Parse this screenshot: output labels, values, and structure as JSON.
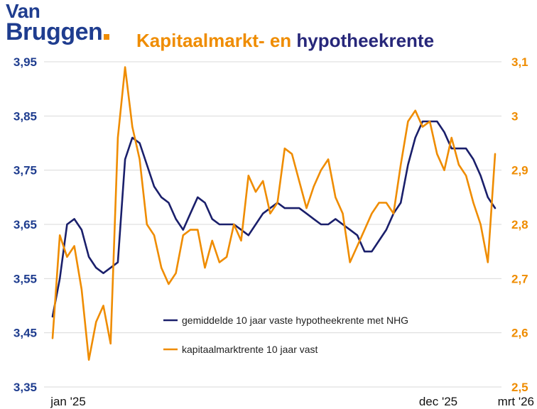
{
  "brand": {
    "line1": "Van",
    "line2": "Bruggen"
  },
  "title": {
    "part1": "Kapitaalmarkt- en",
    "part2": "hypotheekrente"
  },
  "colors": {
    "left_series": "#1a1f6b",
    "right_series": "#ef8c00",
    "brand": "#1f3d8f",
    "grid": "#d9d9d9",
    "left_axis_text": "#1f3d8f",
    "right_axis_text": "#ef8c00"
  },
  "chart_data": {
    "type": "line",
    "title": "Kapitaalmarkt- en hypotheekrente",
    "xlabel": "",
    "ylabel": "",
    "x_tick_labels": [
      "jan '25",
      "dec '25",
      "mrt '26"
    ],
    "y_left": {
      "ylim": [
        3.35,
        3.95
      ],
      "ticks": [
        "3,35",
        "3,45",
        "3,55",
        "3,65",
        "3,75",
        "3,85",
        "3,95"
      ]
    },
    "y_right": {
      "ylim": [
        2.5,
        3.1
      ],
      "ticks": [
        "2,5",
        "2,6",
        "2,7",
        "2,8",
        "2,9",
        "3",
        "3,1"
      ]
    },
    "grid": true,
    "legend_position": "center-bottom",
    "series": [
      {
        "name": "gemiddelde 10 jaar vaste hypotheekrente met NHG",
        "axis": "left",
        "values": [
          3.48,
          3.55,
          3.65,
          3.66,
          3.64,
          3.59,
          3.57,
          3.56,
          3.57,
          3.58,
          3.77,
          3.81,
          3.8,
          3.76,
          3.72,
          3.7,
          3.69,
          3.66,
          3.64,
          3.67,
          3.7,
          3.69,
          3.66,
          3.65,
          3.65,
          3.65,
          3.64,
          3.63,
          3.65,
          3.67,
          3.68,
          3.69,
          3.68,
          3.68,
          3.68,
          3.67,
          3.66,
          3.65,
          3.65,
          3.66,
          3.65,
          3.64,
          3.63,
          3.6,
          3.6,
          3.62,
          3.64,
          3.67,
          3.69,
          3.76,
          3.81,
          3.84,
          3.84,
          3.84,
          3.82,
          3.79,
          3.79,
          3.79,
          3.77,
          3.74,
          3.7,
          3.68
        ]
      },
      {
        "name": "kapitaalmarktrente 10 jaar vast",
        "axis": "right",
        "values": [
          2.59,
          2.78,
          2.74,
          2.76,
          2.68,
          2.55,
          2.62,
          2.65,
          2.58,
          2.96,
          3.09,
          2.98,
          2.92,
          2.8,
          2.78,
          2.72,
          2.69,
          2.71,
          2.78,
          2.79,
          2.79,
          2.72,
          2.77,
          2.73,
          2.74,
          2.8,
          2.77,
          2.89,
          2.86,
          2.88,
          2.82,
          2.84,
          2.94,
          2.93,
          2.88,
          2.83,
          2.87,
          2.9,
          2.92,
          2.85,
          2.82,
          2.73,
          2.76,
          2.79,
          2.82,
          2.84,
          2.84,
          2.82,
          2.91,
          2.99,
          3.01,
          2.98,
          2.99,
          2.93,
          2.9,
          2.96,
          2.91,
          2.89,
          2.84,
          2.8,
          2.73,
          2.93
        ]
      }
    ]
  }
}
